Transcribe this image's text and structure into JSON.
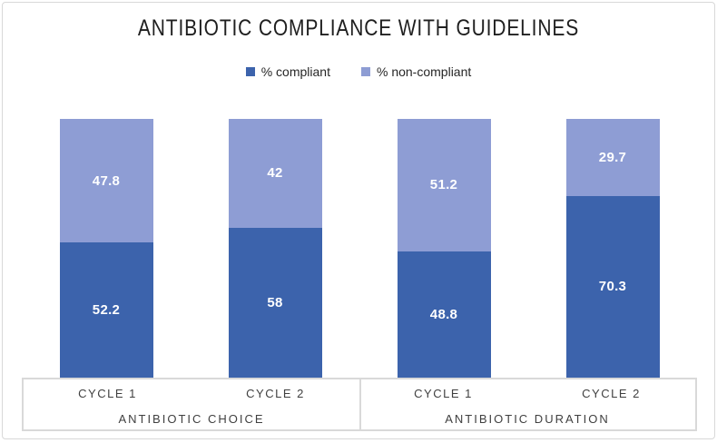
{
  "title": "ANTIBIOTIC COMPLIANCE WITH GUIDELINES",
  "colors": {
    "compliant": "#3C63AC",
    "non_compliant": "#8E9DD4",
    "border_gray": "#D9D9D9",
    "title_text": "#1F1F1F",
    "axis_text": "#404040",
    "data_label_text": "#FFFFFF"
  },
  "legend": {
    "items": [
      {
        "label": "% compliant",
        "color": "#3C63AC"
      },
      {
        "label": "% non-compliant",
        "color": "#8E9DD4"
      }
    ]
  },
  "chart_data": {
    "type": "bar",
    "subtype": "stacked-100-percent",
    "title": "ANTIBIOTIC COMPLIANCE WITH GUIDELINES",
    "groups": [
      "ANTIBIOTIC CHOICE",
      "ANTIBIOTIC DURATION"
    ],
    "categories": [
      "CYCLE 1",
      "CYCLE 2",
      "CYCLE 1",
      "CYCLE 2"
    ],
    "series": [
      {
        "name": "% compliant",
        "color": "#3C63AC",
        "values": [
          52.2,
          58,
          48.8,
          70.3
        ]
      },
      {
        "name": "% non-compliant",
        "color": "#8E9DD4",
        "values": [
          47.8,
          42,
          51.2,
          29.7
        ]
      }
    ],
    "xlabel": "",
    "ylabel": "",
    "ylim": [
      0,
      100
    ],
    "grid": false,
    "legend_position": "top",
    "data_labels": true
  }
}
